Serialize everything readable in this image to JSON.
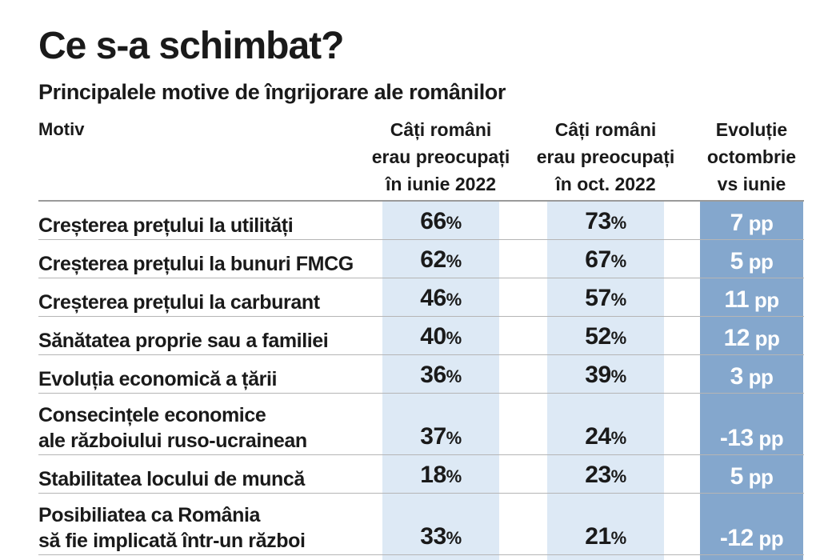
{
  "title": "Ce s-a schimbat?",
  "subtitle": "Principalele motive de îngrijorare ale românilor",
  "colors": {
    "column_shade": "#dde9f5",
    "evolution_shade": "#84a7cd",
    "evolution_text": "#ffffff"
  },
  "chart_data": {
    "type": "table",
    "columns": [
      "Motiv",
      "Câți români erau preocupați în iunie 2022",
      "Câți români erau preocupați în oct. 2022",
      "Evoluție octombrie vs iunie"
    ],
    "header_lines": {
      "motiv": "Motiv",
      "june": [
        "Câți români",
        "erau preocupați",
        "în iunie 2022"
      ],
      "october": [
        "Câți români",
        "erau preocupați",
        "în oct. 2022"
      ],
      "evolution": [
        "Evoluție",
        "octombrie",
        "vs iunie"
      ]
    },
    "value_unit": "%",
    "evolution_unit": "pp",
    "rows": [
      {
        "motiv": "Creșterea prețului la utilități",
        "june": 66,
        "october": 73,
        "evolution": 7
      },
      {
        "motiv": "Creșterea prețului la bunuri FMCG",
        "june": 62,
        "october": 67,
        "evolution": 5
      },
      {
        "motiv": "Creșterea prețului la carburant",
        "june": 46,
        "october": 57,
        "evolution": 11
      },
      {
        "motiv": "Sănătatea proprie sau a familiei",
        "june": 40,
        "october": 52,
        "evolution": 12
      },
      {
        "motiv": "Evoluția economică a țării",
        "june": 36,
        "october": 39,
        "evolution": 3
      },
      {
        "motiv": "Consecințele economice\nale războiului ruso-ucrainean",
        "june": 37,
        "october": 24,
        "evolution": -13
      },
      {
        "motiv": "Stabilitatea locului de muncă",
        "june": 18,
        "october": 23,
        "evolution": 5
      },
      {
        "motiv": "Posibiliatea ca România\nsă fie implicată într-un război",
        "june": 33,
        "october": 21,
        "evolution": -12
      }
    ]
  }
}
